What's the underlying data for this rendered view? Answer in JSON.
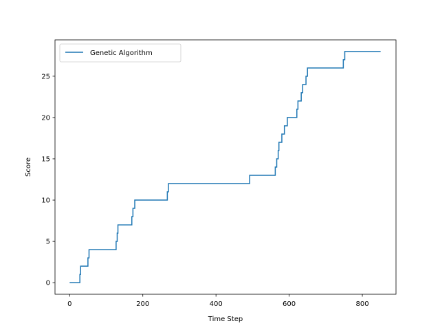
{
  "chart_data": {
    "type": "line",
    "xlabel": "Time Step",
    "ylabel": "Score",
    "xlim": [
      -40,
      892
    ],
    "ylim": [
      -1.4,
      29.4
    ],
    "xticks": [
      0,
      200,
      400,
      600,
      800
    ],
    "yticks": [
      0,
      5,
      10,
      15,
      20,
      25
    ],
    "grid": false,
    "legend_position": "top-left",
    "series": [
      {
        "name": "Genetic Algorithm",
        "color": "#1f77b4",
        "step_x": [
          0,
          28,
          29,
          30,
          50,
          51,
          53,
          127,
          128,
          130,
          132,
          170,
          171,
          173,
          178,
          267,
          268,
          270,
          490,
          492,
          562,
          563,
          566,
          567,
          570,
          572,
          576,
          580,
          587,
          595,
          621,
          622,
          624,
          633,
          635,
          637,
          646,
          647,
          650,
          662,
          748,
          749,
          752,
          755,
          850
        ],
        "step_y": [
          0,
          1,
          1,
          2,
          3,
          3,
          4,
          5,
          5,
          6,
          7,
          8,
          8,
          9,
          10,
          11,
          11,
          12,
          12,
          13,
          14,
          14,
          15,
          15,
          16,
          17,
          17,
          18,
          19,
          20,
          21,
          21,
          22,
          23,
          23,
          24,
          25,
          25,
          26,
          26,
          27,
          27,
          28,
          28,
          28
        ]
      }
    ]
  }
}
